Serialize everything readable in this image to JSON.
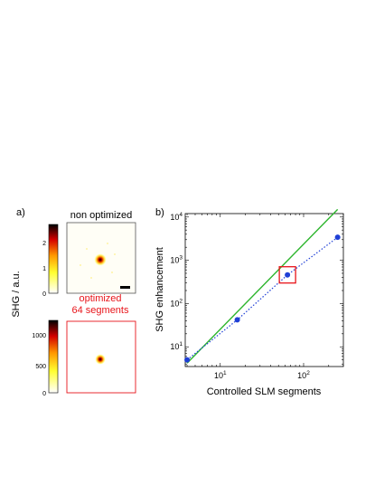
{
  "panel_a": {
    "label": "a)",
    "colorbar_title": "SHG / a.u.",
    "top": {
      "title": "non optimized",
      "colorbar_ticks": [
        "2",
        "1",
        "0"
      ]
    },
    "bottom": {
      "title_line1": "optimized",
      "title_line2": "64 segments",
      "title_color": "#e8141a",
      "colorbar_ticks": [
        "1000",
        "500",
        "0"
      ]
    }
  },
  "panel_b": {
    "label": "b)"
  },
  "chart_data": {
    "type": "line",
    "xlabel": "Controlled SLM segments",
    "ylabel": "SHG enhancement",
    "xscale": "log",
    "yscale": "log",
    "xlim": [
      3.8,
      300
    ],
    "ylim": [
      3.5,
      12000
    ],
    "xtick_labels": [
      {
        "base": "10",
        "exp": "1",
        "value": 10
      },
      {
        "base": "10",
        "exp": "2",
        "value": 100
      }
    ],
    "ytick_labels": [
      {
        "base": "10",
        "exp": "1",
        "value": 10
      },
      {
        "base": "10",
        "exp": "2",
        "value": 100
      },
      {
        "base": "10",
        "exp": "3",
        "value": 1000
      },
      {
        "base": "10",
        "exp": "4",
        "value": 10000
      }
    ],
    "series": [
      {
        "style": "solid",
        "color": "#2db52d",
        "x": [
          4,
          256
        ],
        "y": [
          4.2,
          15000
        ]
      },
      {
        "style": "dotted-markers",
        "color": "#1f3fd6",
        "x": [
          4,
          16,
          64,
          256
        ],
        "y": [
          5,
          42,
          460,
          3400
        ]
      }
    ],
    "highlight": {
      "x": 64,
      "y": 460,
      "color": "#e8141a"
    }
  }
}
